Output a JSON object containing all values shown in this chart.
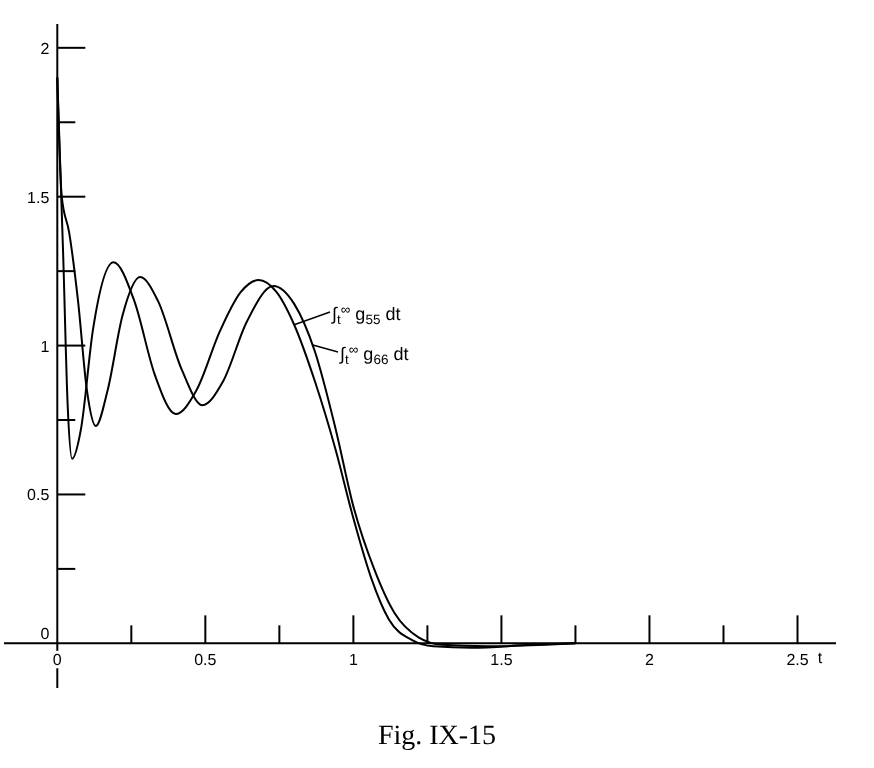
{
  "chart_data": {
    "type": "line",
    "xlabel": "t",
    "annotations": [
      "Fig. IX-15"
    ],
    "xlim": [
      -0.18,
      2.63
    ],
    "ylim": [
      -0.15,
      2.08
    ],
    "xticks": [
      0,
      {
        "value": 0.25,
        "label": null
      },
      0.5,
      {
        "value": 0.75,
        "label": null
      },
      1.0,
      {
        "value": 1.25,
        "label": null
      },
      1.5,
      {
        "value": 1.75,
        "label": null
      },
      2.0,
      {
        "value": 2.25,
        "label": null
      },
      2.5
    ],
    "yticks": [
      0,
      {
        "value": 0.25,
        "label": null
      },
      0.5,
      {
        "value": 0.75,
        "label": null
      },
      1.0,
      {
        "value": 1.25,
        "label": null
      },
      1.5,
      {
        "value": 1.75,
        "label": null
      },
      2.0
    ],
    "grid": false,
    "legend": "center",
    "marker": "none",
    "line_style": "solid",
    "series": [
      {
        "name": "∫$_{t}$$^{∞}$ g$_{55}$ dt",
        "color": "#000000",
        "x": [
          0,
          0.02,
          0.035,
          0.05,
          0.08,
          0.12,
          0.19,
          0.26,
          0.33,
          0.4,
          0.47,
          0.55,
          0.62,
          0.68,
          0.74,
          0.8,
          0.87,
          0.94,
          1.0,
          1.06,
          1.12,
          1.2,
          1.27,
          1.4,
          1.6,
          1.75
        ],
        "values": [
          1.9,
          1.3,
          0.8,
          0.62,
          0.72,
          1.05,
          1.28,
          1.15,
          0.9,
          0.77,
          0.85,
          1.05,
          1.18,
          1.22,
          1.18,
          1.07,
          0.88,
          0.65,
          0.42,
          0.22,
          0.08,
          0.01,
          -0.01,
          -0.015,
          -0.005,
          0
        ]
      },
      {
        "name": "∫$_{t}$$^{∞}$ g$_{66}$ dt",
        "color": "#000000",
        "x": [
          0,
          0.015,
          0.04,
          0.07,
          0.1,
          0.13,
          0.17,
          0.22,
          0.28,
          0.34,
          0.42,
          0.49,
          0.56,
          0.64,
          0.73,
          0.8,
          0.87,
          0.94,
          1.0,
          1.07,
          1.14,
          1.22,
          1.3,
          1.45,
          1.75
        ],
        "values": [
          1.9,
          1.5,
          1.38,
          1.15,
          0.85,
          0.73,
          0.85,
          1.1,
          1.23,
          1.15,
          0.92,
          0.8,
          0.88,
          1.08,
          1.2,
          1.14,
          0.98,
          0.72,
          0.46,
          0.25,
          0.1,
          0.02,
          -0.005,
          -0.01,
          0
        ]
      }
    ]
  }
}
